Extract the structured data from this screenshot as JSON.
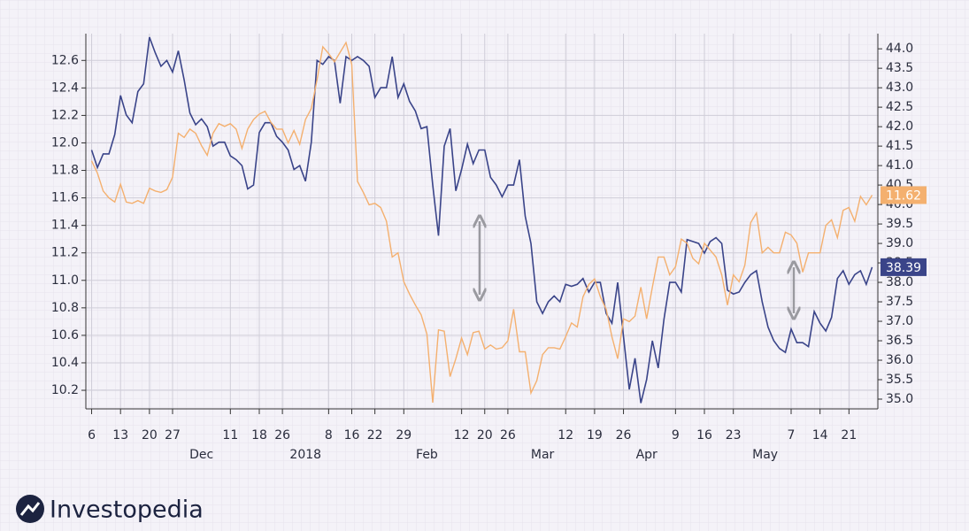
{
  "chart_data": {
    "type": "line",
    "x": [
      0,
      1,
      2,
      3,
      4,
      5,
      6,
      7,
      8,
      9,
      10,
      11,
      12,
      13,
      14,
      15,
      16,
      17,
      18,
      19,
      20,
      21,
      22,
      23,
      24,
      25,
      26,
      27,
      28,
      29,
      30,
      31,
      32,
      33,
      34,
      35,
      36,
      37,
      38,
      39,
      40,
      41,
      42,
      43,
      44,
      45,
      46,
      47,
      48,
      49,
      50,
      51,
      52,
      53,
      54,
      55,
      56,
      57,
      58,
      59,
      60,
      61,
      62,
      63,
      64,
      65,
      66,
      67,
      68,
      69,
      70,
      71,
      72,
      73,
      74,
      75,
      76,
      77,
      78,
      79,
      80,
      81,
      82,
      83,
      84,
      85,
      86,
      87,
      88,
      89,
      90,
      91,
      92,
      93,
      94,
      95,
      96,
      97,
      98,
      99,
      100,
      101,
      102,
      103,
      104,
      105,
      106,
      107,
      108,
      109,
      110,
      111,
      112,
      113,
      114,
      115,
      116,
      117,
      118,
      119,
      120,
      121,
      122,
      123,
      124,
      125,
      126,
      127,
      128,
      129,
      130,
      131,
      132,
      133,
      134,
      135
    ],
    "xlim": [
      -1,
      136
    ],
    "xticks": [
      {
        "value": 0,
        "label": "6"
      },
      {
        "value": 5,
        "label": "13"
      },
      {
        "value": 10,
        "label": "20"
      },
      {
        "value": 14,
        "label": "27"
      },
      {
        "value": 24,
        "label": "11"
      },
      {
        "value": 29,
        "label": "18"
      },
      {
        "value": 33,
        "label": "26"
      },
      {
        "value": 41,
        "label": "8"
      },
      {
        "value": 45,
        "label": "16"
      },
      {
        "value": 49,
        "label": "22"
      },
      {
        "value": 54,
        "label": "29"
      },
      {
        "value": 64,
        "label": "12"
      },
      {
        "value": 68,
        "label": "20"
      },
      {
        "value": 72,
        "label": "26"
      },
      {
        "value": 82,
        "label": "12"
      },
      {
        "value": 87,
        "label": "19"
      },
      {
        "value": 92,
        "label": "26"
      },
      {
        "value": 101,
        "label": "9"
      },
      {
        "value": 106,
        "label": "16"
      },
      {
        "value": 111,
        "label": "23"
      },
      {
        "value": 121,
        "label": "7"
      },
      {
        "value": 126,
        "label": "14"
      },
      {
        "value": 131,
        "label": "21"
      }
    ],
    "xticks_secondary": [
      {
        "value": 19,
        "label": "Dec"
      },
      {
        "value": 37,
        "label": "2018"
      },
      {
        "value": 58,
        "label": "Feb"
      },
      {
        "value": 78,
        "label": "Mar"
      },
      {
        "value": 96,
        "label": "Apr"
      },
      {
        "value": 116.5,
        "label": "May"
      }
    ],
    "ylim": [
      10.065,
      12.795
    ],
    "yticks": [
      10.2,
      10.4,
      10.6,
      10.8,
      {
        "value": 11,
        "label": "11.0"
      },
      11.2,
      11.4,
      11.6,
      11.8,
      {
        "value": 12,
        "label": "12.0"
      },
      12.2,
      12.4,
      12.6
    ],
    "y2lim": [
      34.75,
      44.39
    ],
    "y2ticks": [
      {
        "value": 35,
        "label": "35.0"
      },
      35.5,
      {
        "value": 36,
        "label": "36.0"
      },
      36.5,
      {
        "value": 37,
        "label": "37.0"
      },
      37.5,
      {
        "value": 38,
        "label": "38.0"
      },
      38.5,
      {
        "value": 39,
        "label": "39.0"
      },
      39.5,
      {
        "value": 40,
        "label": "40.0"
      },
      40.5,
      {
        "value": 41,
        "label": "41.0"
      },
      41.5,
      {
        "value": 42,
        "label": "42.0"
      },
      42.5,
      {
        "value": 43,
        "label": "43.0"
      },
      43.5,
      {
        "value": 44,
        "label": "44.0"
      }
    ],
    "grid": true,
    "series": [
      {
        "color": "#3a4489",
        "axis": "y2",
        "values": [
          41.4,
          40.95,
          41.3,
          41.3,
          41.8,
          42.8,
          42.3,
          42.1,
          42.9,
          43.1,
          44.3,
          43.9,
          43.55,
          43.7,
          43.4,
          43.95,
          43.2,
          42.35,
          42.05,
          42.2,
          42.0,
          41.5,
          41.6,
          41.6,
          41.25,
          41.15,
          41.0,
          40.4,
          40.5,
          41.85,
          42.1,
          42.1,
          41.75,
          41.6,
          41.4,
          40.9,
          41.0,
          40.6,
          41.6,
          43.7,
          43.6,
          43.8,
          43.7,
          42.6,
          43.8,
          43.7,
          43.8,
          43.7,
          43.55,
          42.75,
          43.0,
          43.0,
          43.8,
          42.75,
          43.1,
          42.65,
          42.4,
          41.95,
          42.0,
          40.5,
          39.2,
          41.5,
          41.95,
          40.35,
          40.9,
          41.55,
          41.05,
          41.4,
          41.4,
          40.7,
          40.5,
          40.2,
          40.5,
          40.5,
          41.15,
          39.7,
          39.0,
          37.5,
          37.2,
          37.5,
          37.65,
          37.5,
          37.95,
          37.9,
          37.95,
          38.1,
          37.75,
          38.0,
          38.0,
          37.2,
          36.95,
          38.0,
          36.6,
          35.25,
          36.05,
          34.9,
          35.5,
          36.5,
          35.8,
          37.05,
          38.0,
          38.0,
          37.75,
          39.1,
          39.05,
          39.0,
          38.75,
          39.05,
          39.15,
          39.0,
          37.8,
          37.7,
          37.75,
          38.0,
          38.2,
          38.3,
          37.5,
          36.85,
          36.5,
          36.3,
          36.2,
          36.8,
          36.45,
          36.45,
          36.35,
          37.25,
          36.95,
          36.75,
          37.1,
          38.1,
          38.3,
          37.95,
          38.2,
          38.3,
          37.95,
          38.39
        ]
      },
      {
        "color": "#f4b06f",
        "axis": "y",
        "values": [
          11.87,
          11.78,
          11.65,
          11.6,
          11.57,
          11.7,
          11.57,
          11.56,
          11.58,
          11.56,
          11.67,
          11.65,
          11.64,
          11.66,
          11.75,
          12.07,
          12.04,
          12.1,
          12.07,
          11.98,
          11.91,
          12.07,
          12.14,
          12.12,
          12.14,
          12.1,
          11.96,
          12.1,
          12.17,
          12.21,
          12.23,
          12.15,
          12.1,
          12.1,
          12.0,
          12.09,
          11.99,
          12.17,
          12.25,
          12.46,
          12.7,
          12.65,
          12.59,
          12.66,
          12.73,
          12.57,
          11.72,
          11.64,
          11.55,
          11.56,
          11.53,
          11.43,
          11.17,
          11.2,
          10.99,
          10.9,
          10.82,
          10.75,
          10.61,
          10.11,
          10.64,
          10.63,
          10.3,
          10.43,
          10.58,
          10.46,
          10.62,
          10.63,
          10.5,
          10.53,
          10.5,
          10.51,
          10.56,
          10.79,
          10.48,
          10.48,
          10.18,
          10.27,
          10.46,
          10.51,
          10.51,
          10.5,
          10.59,
          10.69,
          10.66,
          10.88,
          10.97,
          11.01,
          10.88,
          10.79,
          10.59,
          10.43,
          10.72,
          10.7,
          10.74,
          10.95,
          10.72,
          10.95,
          11.17,
          11.17,
          11.04,
          11.1,
          11.3,
          11.27,
          11.16,
          11.12,
          11.27,
          11.22,
          11.17,
          11.04,
          10.82,
          11.04,
          10.99,
          11.11,
          11.42,
          11.49,
          11.2,
          11.24,
          11.2,
          11.2,
          11.35,
          11.33,
          11.27,
          11.06,
          11.2,
          11.2,
          11.2,
          11.4,
          11.44,
          11.31,
          11.51,
          11.53,
          11.43,
          11.61,
          11.55,
          11.62
        ]
      }
    ],
    "annotations": [
      {
        "value": 11.62,
        "axis": "y",
        "color": "#f4b06f"
      },
      {
        "value": 38.39,
        "axis": "y2",
        "color": "#3a4489"
      }
    ]
  },
  "footer": {
    "brand": "Investopedia"
  }
}
